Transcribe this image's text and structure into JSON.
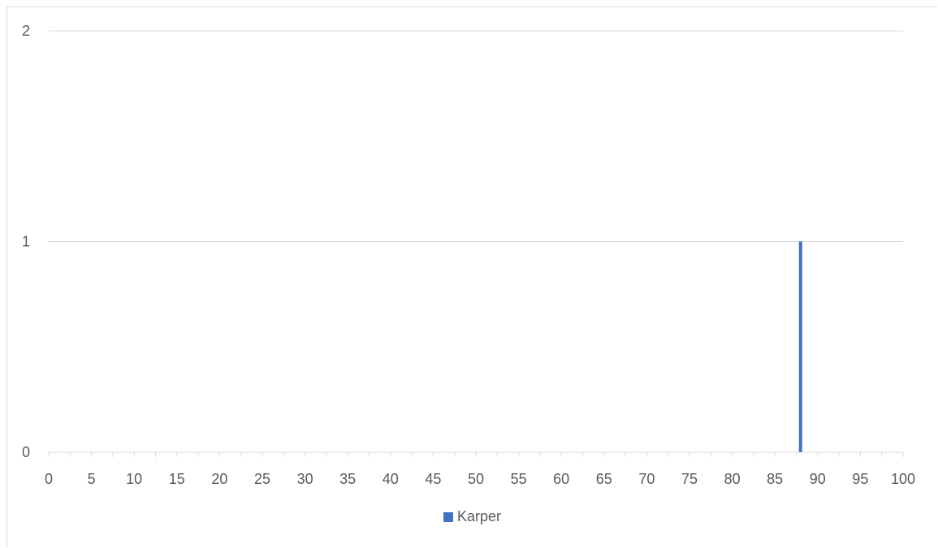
{
  "chart_data": {
    "type": "bar",
    "title": "",
    "xlabel": "",
    "ylabel": "",
    "xlim": [
      0,
      100
    ],
    "ylim": [
      0,
      2
    ],
    "x_ticks": [
      0,
      5,
      10,
      15,
      20,
      25,
      30,
      35,
      40,
      45,
      50,
      55,
      60,
      65,
      70,
      75,
      80,
      85,
      90,
      95,
      100
    ],
    "y_ticks": [
      0,
      1,
      2
    ],
    "grid": true,
    "legend_position": "bottom",
    "series": [
      {
        "name": "Karper",
        "color": "#4472c4",
        "points": [
          {
            "x": 88,
            "y": 1
          }
        ]
      }
    ]
  }
}
